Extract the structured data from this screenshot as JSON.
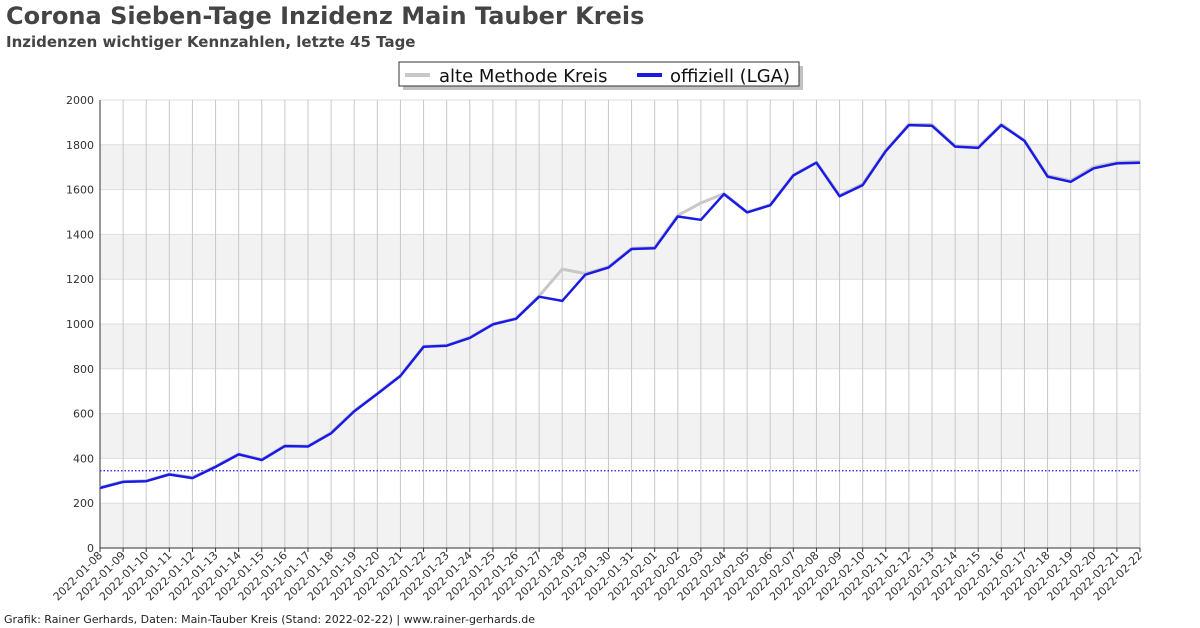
{
  "header": {
    "title": "Corona Sieben-Tage Inzidenz Main Tauber Kreis",
    "subtitle": "Inzidenzen wichtiger Kennzahlen, letzte 45 Tage"
  },
  "footer": {
    "credit": "Grafik: Rainer Gerhards, Daten: Main-Tauber Kreis (Stand: 2022-02-22) | www.rainer-gerhards.de"
  },
  "colors": {
    "old_method": "#c8c8c8",
    "official": "#1a1ae6",
    "threshold": "#1a1ae6",
    "band": "#f2f2f2",
    "grid": "#c8c8c8"
  },
  "chart_data": {
    "type": "line",
    "title": "Corona Sieben-Tage Inzidenz Main Tauber Kreis",
    "subtitle": "Inzidenzen wichtiger Kennzahlen, letzte 45 Tage",
    "xlabel": "",
    "ylabel": "",
    "ylim": [
      0,
      2000
    ],
    "yticks": [
      0,
      200,
      400,
      600,
      800,
      1000,
      1200,
      1400,
      1600,
      1800,
      2000
    ],
    "grid": true,
    "legend_position": "top-center",
    "x_tick_labels": [
      "2022-01-08",
      "2022-01-09",
      "2022-01-10",
      "2022-01-11",
      "2022-01-12",
      "2022-01-13",
      "2022-01-14",
      "2022-01-15",
      "2022-01-16",
      "2022-01-17",
      "2022-01-18",
      "2022-01-19",
      "2022-01-20",
      "2022-01-21",
      "2022-01-22",
      "2022-01-23",
      "2022-01-24",
      "2022-01-25",
      "2022-01-26",
      "2022-01-27",
      "2022-01-28",
      "2022-01-29",
      "2022-01-30",
      "2022-01-31",
      "2022-02-01",
      "2022-02-02",
      "2022-02-03",
      "2022-02-04",
      "2022-02-05",
      "2022-02-06",
      "2022-02-07",
      "2022-02-08",
      "2022-02-09",
      "2022-02-10",
      "2022-02-11",
      "2022-02-12",
      "2022-02-13",
      "2022-02-14",
      "2022-02-15",
      "2022-02-16",
      "2022-02-17",
      "2022-02-18",
      "2022-02-19",
      "2022-02-20",
      "2022-02-21",
      "2022-02-22"
    ],
    "x_range": [
      "2022-01-08",
      "2022-02-22"
    ],
    "threshold": {
      "y": 345,
      "style": "dotted"
    },
    "series": [
      {
        "name": "alte Methode Kreis",
        "x": [
          "2022-01-08",
          "2022-01-09",
          "2022-01-10",
          "2022-01-11",
          "2022-01-12",
          "2022-01-13",
          "2022-01-14",
          "2022-01-15",
          "2022-01-16",
          "2022-01-17",
          "2022-01-18",
          "2022-01-19",
          "2022-01-20",
          "2022-01-21",
          "2022-01-22",
          "2022-01-23",
          "2022-01-24",
          "2022-01-25",
          "2022-01-26",
          "2022-01-27",
          "2022-01-28",
          "2022-01-29",
          "2022-01-30",
          "2022-01-31",
          "2022-02-01",
          "2022-02-02",
          "2022-02-03",
          "2022-02-04",
          "2022-02-05",
          "2022-02-06",
          "2022-02-07",
          "2022-02-08",
          "2022-02-09",
          "2022-02-10",
          "2022-02-11",
          "2022-02-12",
          "2022-02-13",
          "2022-02-14",
          "2022-02-15",
          "2022-02-16",
          "2022-02-17",
          "2022-02-18",
          "2022-02-19",
          "2022-02-20",
          "2022-02-21",
          "2022-02-22"
        ],
        "values": [
          270,
          297,
          300,
          330,
          315,
          365,
          420,
          395,
          458,
          455,
          515,
          612,
          690,
          770,
          900,
          905,
          940,
          1000,
          1025,
          1125,
          1245,
          1225,
          1255,
          1338,
          1342,
          1485,
          1540,
          1582,
          1500,
          1532,
          1665,
          1722,
          1575,
          1625,
          1775,
          1892,
          1890,
          1795,
          1790,
          1892,
          1820,
          1662,
          1640,
          1702,
          1722,
          1725
        ]
      },
      {
        "name": "offiziell (LGA)",
        "x": [
          "2022-01-08",
          "2022-01-09",
          "2022-01-10",
          "2022-01-11",
          "2022-01-12",
          "2022-01-13",
          "2022-01-14",
          "2022-01-15",
          "2022-01-16",
          "2022-01-17",
          "2022-01-18",
          "2022-01-19",
          "2022-01-20",
          "2022-01-21",
          "2022-01-22",
          "2022-01-23",
          "2022-01-24",
          "2022-01-25",
          "2022-01-26",
          "2022-01-27",
          "2022-01-28",
          "2022-01-29",
          "2022-01-30",
          "2022-01-31",
          "2022-02-01",
          "2022-02-02",
          "2022-02-03",
          "2022-02-04",
          "2022-02-05",
          "2022-02-06",
          "2022-02-07",
          "2022-02-08",
          "2022-02-09",
          "2022-02-10",
          "2022-02-11",
          "2022-02-12",
          "2022-02-13",
          "2022-02-14",
          "2022-02-15",
          "2022-02-16",
          "2022-02-17",
          "2022-02-18",
          "2022-02-19",
          "2022-02-20",
          "2022-02-21",
          "2022-02-22"
        ],
        "values": [
          268,
          295,
          298,
          328,
          312,
          362,
          418,
          393,
          455,
          453,
          512,
          610,
          688,
          768,
          898,
          903,
          938,
          998,
          1023,
          1122,
          1103,
          1220,
          1252,
          1335,
          1338,
          1480,
          1465,
          1580,
          1498,
          1530,
          1663,
          1720,
          1570,
          1620,
          1772,
          1888,
          1885,
          1792,
          1786,
          1888,
          1818,
          1658,
          1635,
          1695,
          1717,
          1720
        ]
      }
    ]
  }
}
